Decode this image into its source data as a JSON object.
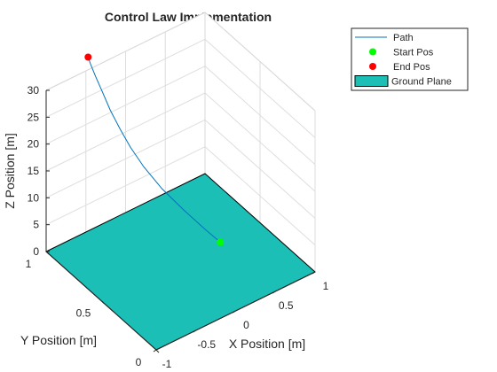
{
  "chart_data": {
    "type": "line",
    "title": "Control Law Implementation",
    "xlabel": "X Position [m]",
    "ylabel": "Y Position [m]",
    "zlabel": "Z Position [m]",
    "xlim": [
      -1,
      1
    ],
    "ylim": [
      0,
      1
    ],
    "zlim": [
      0,
      30
    ],
    "xticks": [
      -1,
      -0.5,
      0,
      0.5,
      1
    ],
    "xtick_labels": [
      "-1",
      "-0.5",
      "0",
      "0.5",
      "1"
    ],
    "yticks": [
      0,
      0.5,
      1
    ],
    "ytick_labels": [
      "0",
      "0.5",
      "1"
    ],
    "zticks": [
      0,
      5,
      10,
      15,
      20,
      25,
      30
    ],
    "ztick_labels": [
      "0",
      "5",
      "10",
      "15",
      "20",
      "25",
      "30"
    ],
    "grid": true,
    "legend_position": "outside-top-right",
    "series": [
      {
        "name": "Path",
        "color": "#0072BD",
        "x": [
          0.5,
          0.42,
          0.3,
          0.17,
          0.05,
          -0.05,
          -0.14,
          -0.22,
          -0.29,
          -0.35,
          -0.4,
          -0.43
        ],
        "y": [
          0.5,
          0.58,
          0.69,
          0.79,
          0.87,
          0.92,
          0.95,
          0.98,
          1.0,
          1.02,
          1.03,
          1.03
        ],
        "z": [
          0,
          1.5,
          4,
          7,
          10.5,
          14,
          17.5,
          21,
          24.5,
          27.5,
          30,
          31.5
        ]
      },
      {
        "name": "Start Pos",
        "color": "#00FF00",
        "x": [
          0.5
        ],
        "y": [
          0.5
        ],
        "z": [
          0
        ]
      },
      {
        "name": "End Pos",
        "color": "#FF0000",
        "x": [
          -0.43
        ],
        "y": [
          1.03
        ],
        "z": [
          31.5
        ]
      },
      {
        "name": "Ground Plane",
        "color": "#1BBFB6",
        "plane_z": 0
      }
    ]
  }
}
